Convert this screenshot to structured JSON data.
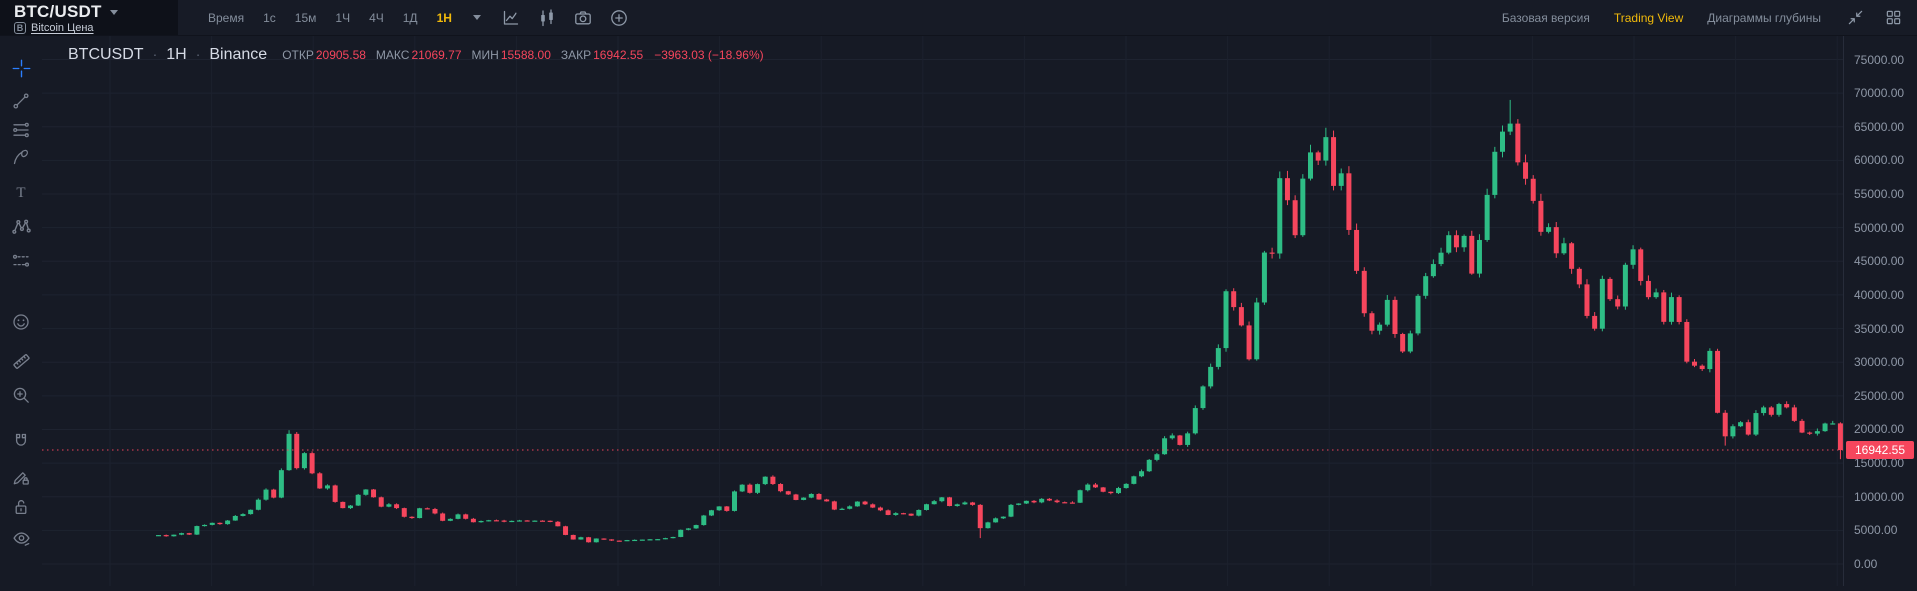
{
  "topbar": {
    "symbol": "BTC/USDT",
    "symbol_link": "Bitcoin Цена",
    "coin_badge": "B",
    "timeframes": {
      "label": "Время",
      "options": [
        "1с",
        "15м",
        "1Ч",
        "4Ч",
        "1Д",
        "1Н"
      ],
      "active": "1Н"
    },
    "chart_tool_icons": [
      "line-chart",
      "candlesticks",
      "camera",
      "plus-circle"
    ],
    "right_links": [
      {
        "label": "Базовая версия",
        "active": false
      },
      {
        "label": "Trading View",
        "active": true
      },
      {
        "label": "Диаграммы глубины",
        "active": false
      }
    ],
    "right_icons": [
      "collapse",
      "grid-layout"
    ]
  },
  "tool_rail": {
    "tools": [
      {
        "name": "crosshair",
        "active": true
      },
      {
        "name": "trend-line",
        "active": false
      },
      {
        "name": "fib-lines",
        "active": false
      },
      {
        "name": "brush",
        "active": false
      },
      {
        "name": "text",
        "active": false
      },
      {
        "name": "xabcd-pattern",
        "active": false
      },
      {
        "name": "forecast",
        "active": false
      },
      {
        "name": "emoji",
        "active": false
      },
      {
        "name": "ruler",
        "active": false
      },
      {
        "name": "zoom-in",
        "active": false
      },
      {
        "name": "magnet",
        "active": false
      },
      {
        "name": "drawing-lock",
        "active": false
      },
      {
        "name": "lock-all",
        "active": false
      },
      {
        "name": "hide-drawings",
        "active": false
      }
    ]
  },
  "legend": {
    "symbol": "BTCUSDT",
    "interval": "1H",
    "exchange": "Binance",
    "sep": "·",
    "fields": [
      {
        "label": "ОТКР",
        "value": "20905.58"
      },
      {
        "label": "МАКС",
        "value": "21069.77"
      },
      {
        "label": "МИН",
        "value": "15588.00"
      },
      {
        "label": "ЗАКР",
        "value": "16942.55"
      }
    ],
    "change": "−3963.03 (−18.96%)"
  },
  "chart_data": {
    "type": "candlestick",
    "symbol": "BTCUSDT",
    "interval": "1H",
    "exchange": "Binance",
    "last_price": 16942.55,
    "last_price_label": "16942.55",
    "ohlc": {
      "open": 20905.58,
      "high": 21069.77,
      "low": 15588.0,
      "close": 16942.55,
      "change": -3963.03,
      "change_pct": -18.96
    },
    "y_axis": {
      "min": 0,
      "max": 75000,
      "tick_step": 5000,
      "labels": [
        "75000.00",
        "70000.00",
        "65000.00",
        "60000.00",
        "55000.00",
        "50000.00",
        "45000.00",
        "40000.00",
        "35000.00",
        "30000.00",
        "25000.00",
        "20000.00",
        "15000.00",
        "10000.00",
        "5000.00",
        "0.00"
      ]
    },
    "grid": true,
    "first_open": 4200,
    "closes": [
      4300,
      4120,
      4360,
      4590,
      4370,
      5640,
      5810,
      6120,
      5930,
      6460,
      7140,
      7420,
      8060,
      9560,
      11060,
      9870,
      13950,
      19350,
      14250,
      16480,
      13480,
      11230,
      11680,
      9230,
      8310,
      8690,
      10290,
      11080,
      9920,
      8520,
      8880,
      8310,
      7020,
      6830,
      8290,
      8180,
      7510,
      6420,
      6710,
      7380,
      6720,
      6210,
      6390,
      6510,
      6460,
      6280,
      6410,
      6480,
      6400,
      6450,
      6430,
      6280,
      5610,
      4320,
      3640,
      3980,
      3230,
      3790,
      3660,
      3480,
      3420,
      3560,
      3590,
      3630,
      3680,
      3700,
      3850,
      4020,
      5080,
      5290,
      5790,
      7210,
      7990,
      8560,
      7890,
      10790,
      11790,
      10580,
      11880,
      12980,
      11890,
      10820,
      10340,
      9520,
      9870,
      10410,
      9590,
      9310,
      8090,
      8210,
      8570,
      9280,
      8870,
      8390,
      7980,
      7290,
      7560,
      7480,
      7190,
      8030,
      8890,
      9340,
      9910,
      8620,
      8870,
      9150,
      8790,
      5330,
      6190,
      6790,
      7040,
      8790,
      8990,
      9390,
      9160,
      9690,
      9440,
      9190,
      9140,
      9110,
      10970,
      11810,
      11390,
      10740,
      10540,
      11290,
      11910,
      13040,
      13790,
      15480,
      16320,
      18690,
      19110,
      17700,
      19420,
      23180,
      26400,
      29300,
      32100,
      40550,
      38190,
      35470,
      30430,
      38880,
      46300,
      46160,
      57360,
      54080,
      48880,
      57290,
      61190,
      59970,
      63460,
      56210,
      58080,
      49660,
      43580,
      37280,
      34680,
      35580,
      39260,
      34190,
      31590,
      34280,
      39870,
      42790,
      44590,
      46280,
      48880,
      47080,
      48780,
      43170,
      48170,
      54870,
      61280,
      64280,
      65470,
      59710,
      57270,
      53980,
      49380,
      50080,
      46190,
      47680,
      43880,
      41570,
      36880,
      34980,
      42380,
      39370,
      38280,
      44480,
      46780,
      42080,
      39670,
      40380,
      36000,
      39680,
      35980,
      30080,
      29480,
      28980,
      31680,
      22480,
      18980,
      20480,
      21080,
      19240,
      22440,
      23280,
      22180,
      23780,
      23280,
      21280,
      19540,
      19380,
      19750,
      20890,
      20905.58,
      16942.55
    ],
    "wick_overrides": {
      "17": {
        "high": 19890
      },
      "107": {
        "low": 3850
      },
      "152": {
        "high": 64850
      },
      "176": {
        "high": 68990
      },
      "204": {
        "low": 17600
      },
      "219": {
        "high": 21069.77,
        "low": 15588.0
      }
    },
    "colors": {
      "up": "#2ebd85",
      "down": "#f6465d",
      "accent": "#f0b90b",
      "price_line": "#f6465d",
      "crosshair": "#2b7fff"
    }
  }
}
